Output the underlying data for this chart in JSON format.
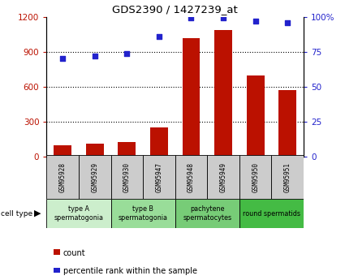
{
  "title": "GDS2390 / 1427239_at",
  "samples": [
    "GSM95928",
    "GSM95929",
    "GSM95930",
    "GSM95947",
    "GSM95948",
    "GSM95949",
    "GSM95950",
    "GSM95951"
  ],
  "counts": [
    100,
    115,
    125,
    255,
    1020,
    1090,
    695,
    575
  ],
  "percentiles": [
    70,
    72,
    74,
    86,
    99,
    99,
    97,
    96
  ],
  "ylim_left": [
    0,
    1200
  ],
  "ylim_right": [
    0,
    100
  ],
  "yticks_left": [
    0,
    300,
    600,
    900,
    1200
  ],
  "ytick_labels_left": [
    "0",
    "300",
    "600",
    "900",
    "1200"
  ],
  "yticks_right": [
    0,
    25,
    50,
    75,
    100
  ],
  "ytick_labels_right": [
    "0",
    "25",
    "50",
    "75",
    "100%"
  ],
  "bar_color": "#bb1100",
  "dot_color": "#2222cc",
  "cell_types": [
    {
      "label": "type A\nspermatogonia",
      "start": 0,
      "end": 2,
      "color": "#cceecc"
    },
    {
      "label": "type B\nspermatogonia",
      "start": 2,
      "end": 4,
      "color": "#99dd99"
    },
    {
      "label": "pachytene\nspermatocytes",
      "start": 4,
      "end": 6,
      "color": "#77cc77"
    },
    {
      "label": "round spermatids",
      "start": 6,
      "end": 8,
      "color": "#44bb44"
    }
  ],
  "tick_box_color": "#cccccc",
  "legend_count_color": "#bb1100",
  "legend_pct_color": "#2222cc"
}
